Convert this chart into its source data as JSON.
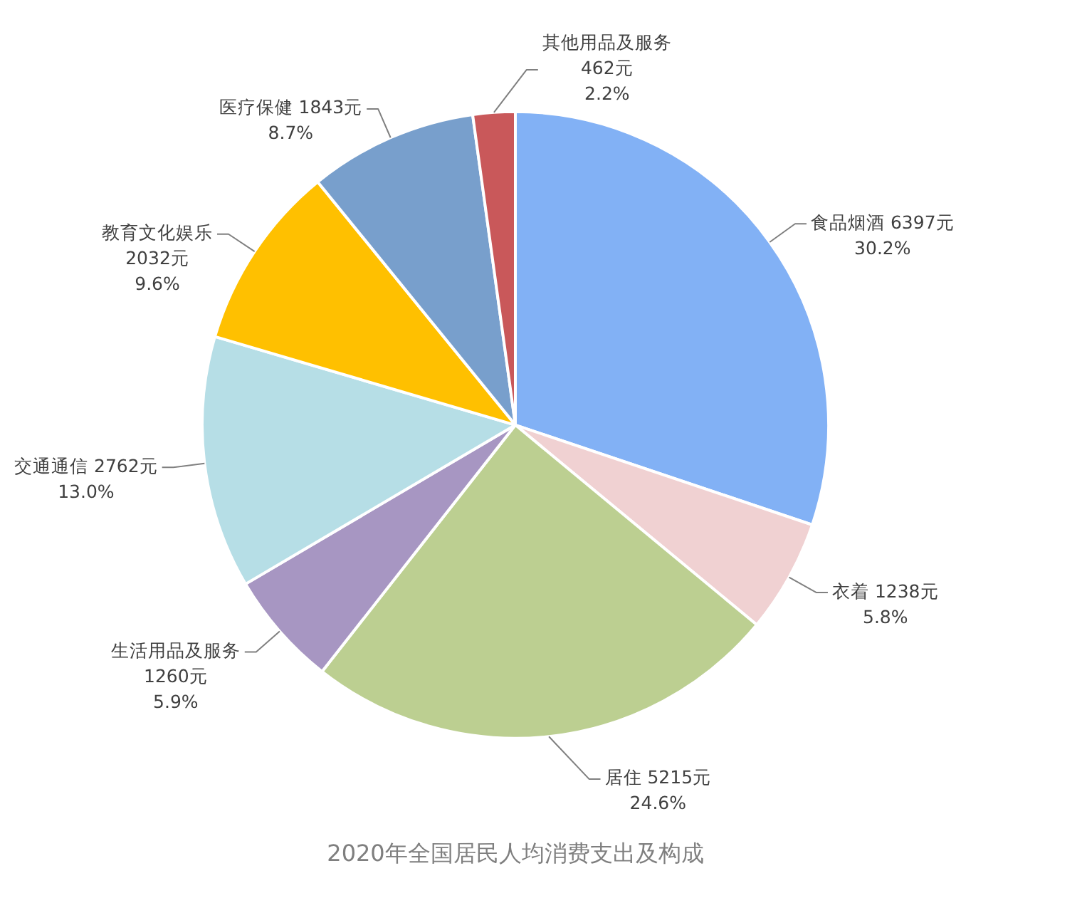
{
  "chart_data": {
    "type": "pie",
    "title": "2020年全国居民人均消费支出及构成",
    "categories": [
      "食品烟酒",
      "衣着",
      "居住",
      "生活用品及服务",
      "交通通信",
      "教育文化娱乐",
      "医疗保健",
      "其他用品及服务"
    ],
    "values": [
      6397,
      1238,
      5215,
      1260,
      2762,
      2032,
      1843,
      462
    ],
    "colors": [
      "#82b1f5",
      "#f0d1d2",
      "#bccf91",
      "#a796c2",
      "#b6dee6",
      "#ffc000",
      "#789fcc",
      "#c9585a"
    ],
    "value_labels": [
      "6397元\n30.2%",
      "1238元\n5.8%",
      "5215元\n24.6%",
      "1260元\n5.9%",
      "2762元\n13.0%",
      "2032元\n9.6%",
      "1843元\n8.7%",
      "462元\n2.2%"
    ]
  }
}
